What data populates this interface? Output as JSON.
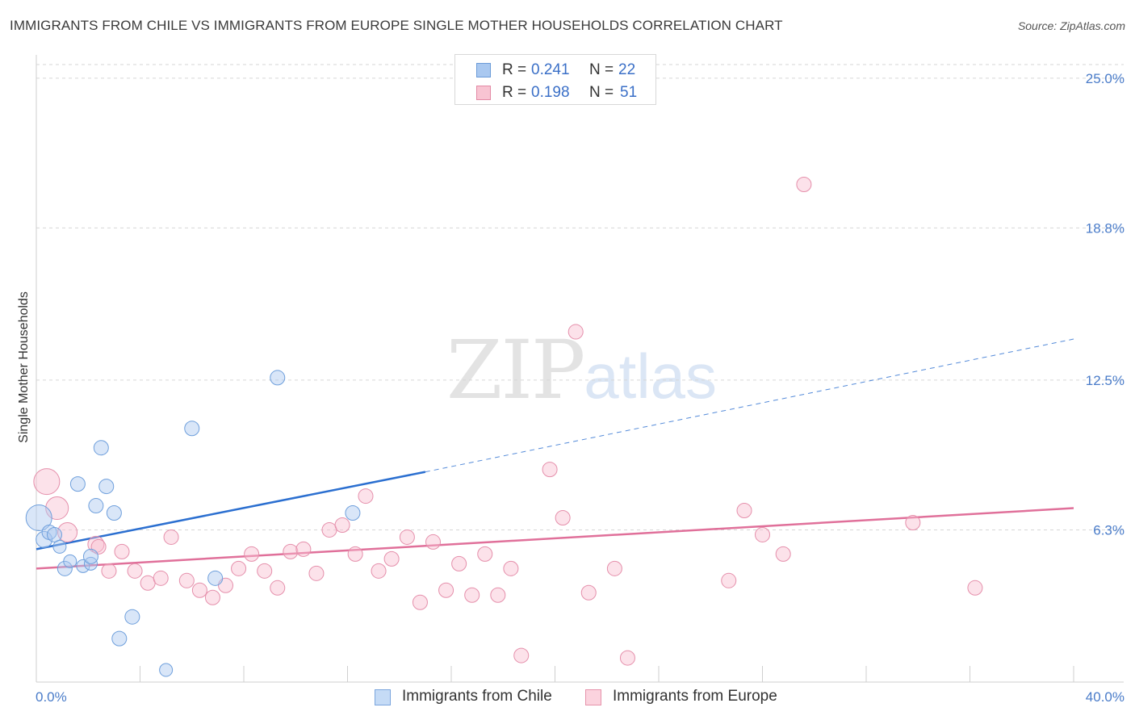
{
  "title": "IMMIGRANTS FROM CHILE VS IMMIGRANTS FROM EUROPE SINGLE MOTHER HOUSEHOLDS CORRELATION CHART",
  "source": "Source: ZipAtlas.com",
  "watermark": {
    "part1": "ZIP",
    "part2": "atlas"
  },
  "legend": {
    "rows": [
      {
        "r_label": "R =",
        "r_value": "0.241",
        "n_label": "N =",
        "n_value": "22",
        "color": "#a9c8f0",
        "border": "#6b9bd8"
      },
      {
        "r_label": "R =",
        "r_value": "0.198",
        "n_label": "N =",
        "n_value": "51",
        "color": "#f8c4d2",
        "border": "#e38aa5"
      }
    ]
  },
  "bottom_legend": [
    {
      "label": "Immigrants from Chile",
      "color": "#c5dbf6",
      "border": "#7aa5dd"
    },
    {
      "label": "Immigrants from Europe",
      "color": "#fbd3de",
      "border": "#e693ab"
    }
  ],
  "colors": {
    "chile_fill": "rgba(170,200,240,0.45)",
    "chile_stroke": "#6e9fdc",
    "chile_line": "#2b6fd0",
    "europe_fill": "rgba(248,190,208,0.45)",
    "europe_stroke": "#e58fab",
    "europe_line": "#e0709a",
    "grid": "#d6d6d6",
    "axis_text": "#4a7cc9"
  },
  "chart_data": {
    "type": "scatter",
    "title": "IMMIGRANTS FROM CHILE VS IMMIGRANTS FROM EUROPE SINGLE MOTHER HOUSEHOLDS CORRELATION CHART",
    "xlabel": "",
    "ylabel": "Single Mother Households",
    "xlim": [
      0,
      40
    ],
    "ylim": [
      0,
      25
    ],
    "x_tick_labels": [
      "0.0%",
      "40.0%"
    ],
    "y_ticks": [
      6.3,
      12.5,
      18.8,
      25.0
    ],
    "y_tick_labels": [
      "6.3%",
      "12.5%",
      "18.8%",
      "25.0%"
    ],
    "grid": "horizontal dashed",
    "series": [
      {
        "name": "Immigrants from Chile",
        "points": [
          [
            0.1,
            6.8,
            16
          ],
          [
            0.3,
            5.9,
            10
          ],
          [
            0.5,
            6.2,
            9
          ],
          [
            0.7,
            6.1,
            9
          ],
          [
            1.6,
            8.2,
            9
          ],
          [
            0.9,
            5.6,
            8
          ],
          [
            1.1,
            4.7,
            9
          ],
          [
            1.3,
            5.0,
            8
          ],
          [
            1.8,
            4.8,
            8
          ],
          [
            2.1,
            4.9,
            8
          ],
          [
            2.1,
            5.2,
            9
          ],
          [
            2.3,
            7.3,
            9
          ],
          [
            2.5,
            9.7,
            9
          ],
          [
            2.7,
            8.1,
            9
          ],
          [
            3.0,
            7.0,
            9
          ],
          [
            3.2,
            1.8,
            9
          ],
          [
            3.7,
            2.7,
            9
          ],
          [
            5.0,
            0.5,
            8
          ],
          [
            6.0,
            10.5,
            9
          ],
          [
            6.9,
            4.3,
            9
          ],
          [
            9.3,
            12.6,
            9
          ],
          [
            12.2,
            7.0,
            9
          ]
        ],
        "trend": {
          "x0": 0,
          "y0": 5.5,
          "x1": 15,
          "y1": 8.7,
          "x1_dashed": 40,
          "y1_dashed": 14.2
        }
      },
      {
        "name": "Immigrants from Europe",
        "points": [
          [
            0.4,
            8.3,
            16
          ],
          [
            0.8,
            7.2,
            14
          ],
          [
            1.2,
            6.2,
            12
          ],
          [
            2.3,
            5.7,
            10
          ],
          [
            2.4,
            5.6,
            9
          ],
          [
            2.8,
            4.6,
            9
          ],
          [
            3.3,
            5.4,
            9
          ],
          [
            3.8,
            4.6,
            9
          ],
          [
            4.3,
            4.1,
            9
          ],
          [
            4.8,
            4.3,
            9
          ],
          [
            5.2,
            6.0,
            9
          ],
          [
            5.8,
            4.2,
            9
          ],
          [
            6.3,
            3.8,
            9
          ],
          [
            6.8,
            3.5,
            9
          ],
          [
            7.3,
            4.0,
            9
          ],
          [
            7.8,
            4.7,
            9
          ],
          [
            8.3,
            5.3,
            9
          ],
          [
            8.8,
            4.6,
            9
          ],
          [
            9.3,
            3.9,
            9
          ],
          [
            9.8,
            5.4,
            9
          ],
          [
            10.3,
            5.5,
            9
          ],
          [
            10.8,
            4.5,
            9
          ],
          [
            11.3,
            6.3,
            9
          ],
          [
            11.8,
            6.5,
            9
          ],
          [
            12.3,
            5.3,
            9
          ],
          [
            12.7,
            7.7,
            9
          ],
          [
            13.2,
            4.6,
            9
          ],
          [
            13.7,
            5.1,
            9
          ],
          [
            14.3,
            6.0,
            9
          ],
          [
            14.8,
            3.3,
            9
          ],
          [
            15.3,
            5.8,
            9
          ],
          [
            15.8,
            3.8,
            9
          ],
          [
            16.3,
            4.9,
            9
          ],
          [
            16.8,
            3.6,
            9
          ],
          [
            17.3,
            5.3,
            9
          ],
          [
            17.8,
            3.6,
            9
          ],
          [
            18.3,
            4.7,
            9
          ],
          [
            18.7,
            1.1,
            9
          ],
          [
            19.8,
            8.8,
            9
          ],
          [
            20.3,
            6.8,
            9
          ],
          [
            20.8,
            14.5,
            9
          ],
          [
            21.3,
            3.7,
            9
          ],
          [
            22.3,
            4.7,
            9
          ],
          [
            22.8,
            1.0,
            9
          ],
          [
            26.7,
            4.2,
            9
          ],
          [
            27.3,
            7.1,
            9
          ],
          [
            28.0,
            6.1,
            9
          ],
          [
            28.8,
            5.3,
            9
          ],
          [
            29.6,
            20.6,
            9
          ],
          [
            33.8,
            6.6,
            9
          ],
          [
            36.2,
            3.9,
            9
          ]
        ],
        "trend": {
          "x0": 0,
          "y0": 4.7,
          "x1": 40,
          "y1": 7.2
        }
      }
    ]
  }
}
